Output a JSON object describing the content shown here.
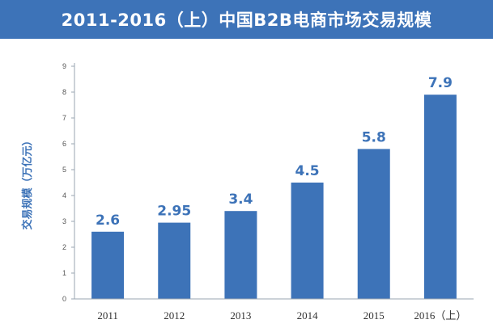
{
  "chart_data": {
    "type": "bar",
    "title": "2011-2016（上）中国B2B电商市场交易规模",
    "xlabel": "",
    "ylabel": "交易规模（万亿元）",
    "categories": [
      "2011",
      "2012",
      "2013",
      "2014",
      "2015",
      "2016（上）"
    ],
    "values": [
      2.6,
      2.95,
      3.4,
      4.5,
      5.8,
      7.9
    ],
    "data_labels": [
      "2.6",
      "2.95",
      "3.4",
      "4.5",
      "5.8",
      "7.9"
    ],
    "ylim": [
      0,
      9
    ],
    "yticks": [
      0,
      1,
      2,
      3,
      4,
      5,
      6,
      7,
      8,
      9
    ],
    "grid": false,
    "legend": "none"
  },
  "colors": {
    "banner": "#3d73b8",
    "bar": "#3d73b8",
    "label": "#3d73b8",
    "axis": "#9aa6b2"
  }
}
